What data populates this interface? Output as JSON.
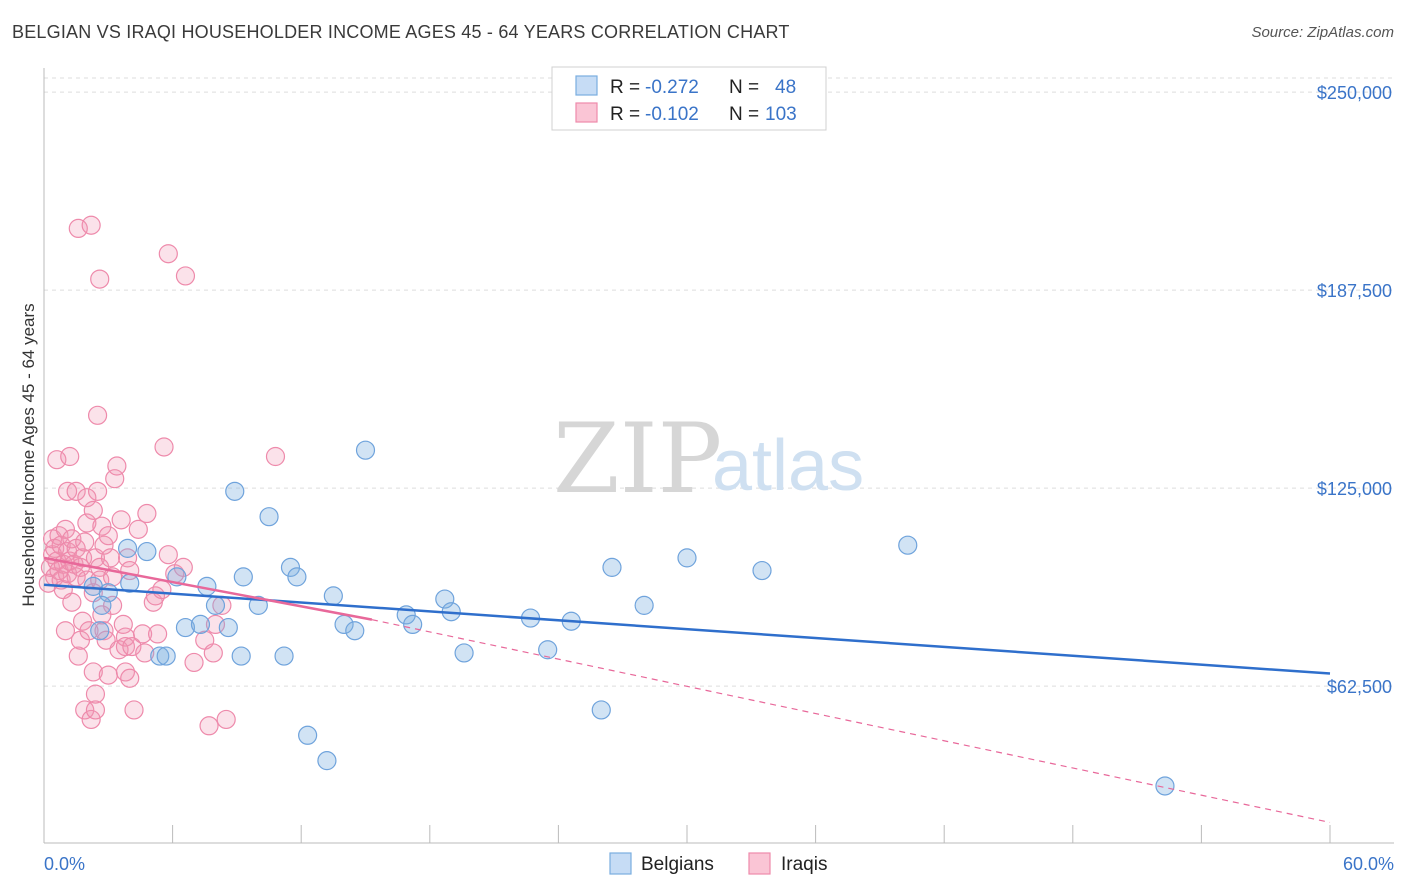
{
  "title": "BELGIAN VS IRAQI HOUSEHOLDER INCOME AGES 45 - 64 YEARS CORRELATION CHART",
  "source": "Source: ZipAtlas.com",
  "watermark": {
    "zip": "ZIP",
    "atlas": "atlas"
  },
  "legend": {
    "rows": [
      {
        "r_label": "R =",
        "r_value": "-0.272",
        "n_label": "N =",
        "n_value": "48",
        "color": "#7aaee0",
        "fill": "#c6dcf5"
      },
      {
        "r_label": "R =",
        "r_value": "-0.102",
        "n_label": "N =",
        "n_value": "103",
        "color": "#ee8aab",
        "fill": "#fac5d5"
      }
    ]
  },
  "bottom_legend": [
    "Belgians",
    "Iraqis"
  ],
  "colors": {
    "belgian_fill": "rgba(122,174,224,0.35)",
    "belgian_stroke": "#6fa3dc",
    "iraqi_fill": "rgba(240,150,180,0.28)",
    "iraqi_stroke": "#ee8aab",
    "belgian_line": "#2f6fcc",
    "iraqi_line": "#e8689a",
    "axis_label": "#3a74c8",
    "grid": "#dddddd"
  },
  "chart_data": {
    "type": "scatter",
    "title": "BELGIAN VS IRAQI HOUSEHOLDER INCOME AGES 45 - 64 YEARS CORRELATION CHART",
    "xlabel": "",
    "ylabel": "Householder Income Ages 45 - 64 years",
    "xlim": [
      0,
      60
    ],
    "ylim": [
      13000,
      257000
    ],
    "x_tick_labels": [
      "0.0%",
      "60.0%"
    ],
    "y_ticks": [
      62500,
      125000,
      187500,
      250000
    ],
    "y_tick_labels": [
      "$62,500",
      "$125,000",
      "$187,500",
      "$250,000"
    ],
    "grid": true,
    "series": [
      {
        "name": "Belgians",
        "points": [
          [
            2.3,
            94000
          ],
          [
            3.0,
            92000
          ],
          [
            2.7,
            88000
          ],
          [
            2.6,
            80000
          ],
          [
            3.9,
            106000
          ],
          [
            4.8,
            105000
          ],
          [
            4.0,
            95000
          ],
          [
            5.4,
            72000
          ],
          [
            5.7,
            72000
          ],
          [
            6.2,
            97000
          ],
          [
            6.6,
            81000
          ],
          [
            7.3,
            82000
          ],
          [
            7.6,
            94000
          ],
          [
            8.0,
            88000
          ],
          [
            8.6,
            81000
          ],
          [
            8.9,
            124000
          ],
          [
            9.2,
            72000
          ],
          [
            9.3,
            97000
          ],
          [
            10.0,
            88000
          ],
          [
            10.5,
            116000
          ],
          [
            11.2,
            72000
          ],
          [
            11.5,
            100000
          ],
          [
            11.8,
            97000
          ],
          [
            12.3,
            47000
          ],
          [
            13.2,
            39000
          ],
          [
            13.5,
            91000
          ],
          [
            14.0,
            82000
          ],
          [
            14.5,
            80000
          ],
          [
            15.0,
            137000
          ],
          [
            16.9,
            85000
          ],
          [
            17.2,
            82000
          ],
          [
            18.7,
            90000
          ],
          [
            19.0,
            86000
          ],
          [
            19.6,
            73000
          ],
          [
            22.7,
            84000
          ],
          [
            23.5,
            74000
          ],
          [
            24.6,
            83000
          ],
          [
            26.0,
            55000
          ],
          [
            26.5,
            100000
          ],
          [
            28.0,
            88000
          ],
          [
            30.0,
            103000
          ],
          [
            33.5,
            99000
          ],
          [
            40.3,
            107000
          ],
          [
            52.3,
            31000
          ]
        ]
      },
      {
        "name": "Iraqis",
        "points": [
          [
            0.2,
            95000
          ],
          [
            0.3,
            100000
          ],
          [
            0.4,
            104000
          ],
          [
            0.4,
            109000
          ],
          [
            0.5,
            97000
          ],
          [
            0.5,
            106000
          ],
          [
            0.6,
            102000
          ],
          [
            0.6,
            134000
          ],
          [
            0.7,
            99000
          ],
          [
            0.7,
            110000
          ],
          [
            0.8,
            96000
          ],
          [
            0.8,
            107000
          ],
          [
            0.9,
            101000
          ],
          [
            0.9,
            93000
          ],
          [
            1.0,
            112000
          ],
          [
            1.0,
            80000
          ],
          [
            1.1,
            98000
          ],
          [
            1.1,
            105000
          ],
          [
            1.1,
            124000
          ],
          [
            1.2,
            135000
          ],
          [
            1.2,
            102000
          ],
          [
            1.3,
            109000
          ],
          [
            1.3,
            89000
          ],
          [
            1.4,
            101000
          ],
          [
            1.5,
            106000
          ],
          [
            1.5,
            97000
          ],
          [
            1.5,
            124000
          ],
          [
            1.6,
            72000
          ],
          [
            1.6,
            207000
          ],
          [
            1.7,
            100000
          ],
          [
            1.7,
            77000
          ],
          [
            1.8,
            103000
          ],
          [
            1.8,
            83000
          ],
          [
            1.9,
            55000
          ],
          [
            1.9,
            108000
          ],
          [
            2.0,
            114000
          ],
          [
            2.0,
            96000
          ],
          [
            2.0,
            122000
          ],
          [
            2.1,
            80000
          ],
          [
            2.2,
            52000
          ],
          [
            2.2,
            208000
          ],
          [
            2.3,
            118000
          ],
          [
            2.3,
            92000
          ],
          [
            2.3,
            67000
          ],
          [
            2.4,
            60000
          ],
          [
            2.4,
            103000
          ],
          [
            2.4,
            55000
          ],
          [
            2.5,
            124000
          ],
          [
            2.5,
            148000
          ],
          [
            2.6,
            100000
          ],
          [
            2.6,
            96000
          ],
          [
            2.6,
            191000
          ],
          [
            2.7,
            85000
          ],
          [
            2.7,
            113000
          ],
          [
            2.8,
            107000
          ],
          [
            2.8,
            80000
          ],
          [
            2.9,
            77000
          ],
          [
            3.0,
            66000
          ],
          [
            3.0,
            110000
          ],
          [
            3.1,
            103000
          ],
          [
            3.2,
            97000
          ],
          [
            3.2,
            88000
          ],
          [
            3.3,
            128000
          ],
          [
            3.4,
            132000
          ],
          [
            3.5,
            74000
          ],
          [
            3.6,
            115000
          ],
          [
            3.7,
            82000
          ],
          [
            3.8,
            78000
          ],
          [
            3.8,
            67000
          ],
          [
            3.8,
            75000
          ],
          [
            3.9,
            103000
          ],
          [
            4.0,
            99000
          ],
          [
            4.0,
            65000
          ],
          [
            4.1,
            75000
          ],
          [
            4.2,
            55000
          ],
          [
            4.4,
            112000
          ],
          [
            4.6,
            79000
          ],
          [
            4.7,
            73000
          ],
          [
            4.8,
            117000
          ],
          [
            5.1,
            89000
          ],
          [
            5.2,
            91000
          ],
          [
            5.3,
            79000
          ],
          [
            5.5,
            93000
          ],
          [
            5.6,
            138000
          ],
          [
            5.8,
            199000
          ],
          [
            5.8,
            104000
          ],
          [
            6.1,
            98000
          ],
          [
            6.5,
            100000
          ],
          [
            6.6,
            192000
          ],
          [
            7.0,
            70000
          ],
          [
            7.5,
            77000
          ],
          [
            7.7,
            50000
          ],
          [
            7.9,
            73000
          ],
          [
            8.0,
            82000
          ],
          [
            8.3,
            88000
          ],
          [
            8.5,
            52000
          ],
          [
            10.8,
            135000
          ]
        ]
      }
    ],
    "trendlines": [
      {
        "series": "Belgians",
        "x": [
          0,
          60
        ],
        "y": [
          94500,
          66500
        ],
        "style": "solid"
      },
      {
        "series": "Iraqis",
        "x": [
          0,
          15.3
        ],
        "y": [
          103000,
          83500
        ],
        "style": "solid"
      },
      {
        "series": "Iraqis",
        "x": [
          15.3,
          60
        ],
        "y": [
          83500,
          19500
        ],
        "style": "dashed"
      }
    ]
  }
}
